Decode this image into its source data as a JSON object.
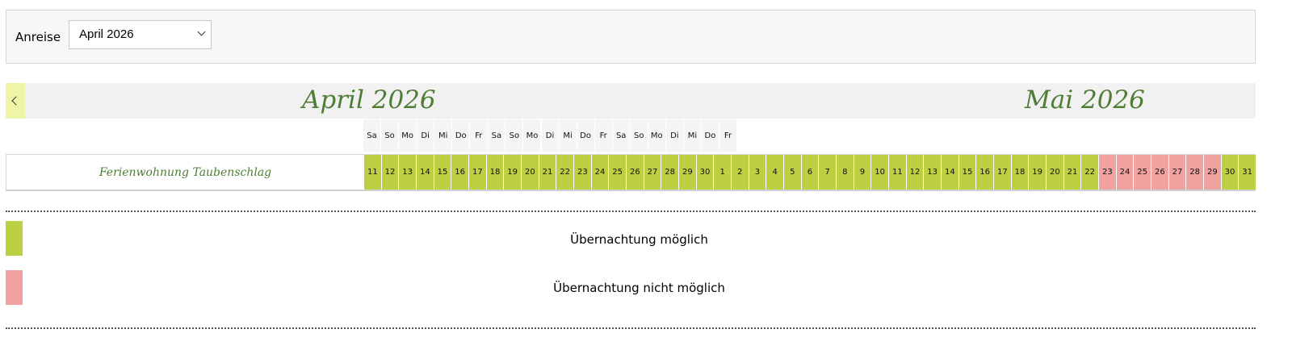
{
  "filter": {
    "label": "Anreise",
    "selected_month": "April 2026"
  },
  "calendar": {
    "months": [
      {
        "title": "April 2026"
      },
      {
        "title": "Mai 2026"
      }
    ],
    "weekdays": [
      "Sa",
      "So",
      "Mo",
      "Di",
      "Mi",
      "Do",
      "Fr",
      "Sa",
      "So",
      "Mo",
      "Di",
      "Mi",
      "Do",
      "Fr",
      "Sa",
      "So",
      "Mo",
      "Di",
      "Mi",
      "Do",
      "Fr"
    ],
    "unit": {
      "name": "Ferienwohnung Taubenschlag",
      "days": [
        {
          "d": "11",
          "s": "available"
        },
        {
          "d": "12",
          "s": "available"
        },
        {
          "d": "13",
          "s": "available"
        },
        {
          "d": "14",
          "s": "available"
        },
        {
          "d": "15",
          "s": "available"
        },
        {
          "d": "16",
          "s": "available"
        },
        {
          "d": "17",
          "s": "available"
        },
        {
          "d": "18",
          "s": "available"
        },
        {
          "d": "19",
          "s": "available"
        },
        {
          "d": "20",
          "s": "available"
        },
        {
          "d": "21",
          "s": "available"
        },
        {
          "d": "22",
          "s": "available"
        },
        {
          "d": "23",
          "s": "available"
        },
        {
          "d": "24",
          "s": "available"
        },
        {
          "d": "25",
          "s": "available"
        },
        {
          "d": "26",
          "s": "available"
        },
        {
          "d": "27",
          "s": "available"
        },
        {
          "d": "28",
          "s": "available"
        },
        {
          "d": "29",
          "s": "available"
        },
        {
          "d": "30",
          "s": "available"
        },
        {
          "d": "1",
          "s": "available"
        },
        {
          "d": "2",
          "s": "available"
        },
        {
          "d": "3",
          "s": "available"
        },
        {
          "d": "4",
          "s": "available"
        },
        {
          "d": "5",
          "s": "available"
        },
        {
          "d": "6",
          "s": "available"
        },
        {
          "d": "7",
          "s": "available"
        },
        {
          "d": "8",
          "s": "available"
        },
        {
          "d": "9",
          "s": "available"
        },
        {
          "d": "10",
          "s": "available"
        },
        {
          "d": "11",
          "s": "available"
        },
        {
          "d": "12",
          "s": "available"
        },
        {
          "d": "13",
          "s": "available"
        },
        {
          "d": "14",
          "s": "available"
        },
        {
          "d": "15",
          "s": "available"
        },
        {
          "d": "16",
          "s": "available"
        },
        {
          "d": "17",
          "s": "available"
        },
        {
          "d": "18",
          "s": "available"
        },
        {
          "d": "19",
          "s": "available"
        },
        {
          "d": "20",
          "s": "available"
        },
        {
          "d": "21",
          "s": "available"
        },
        {
          "d": "22",
          "s": "available"
        },
        {
          "d": "23",
          "s": "unavailable"
        },
        {
          "d": "24",
          "s": "unavailable"
        },
        {
          "d": "25",
          "s": "unavailable"
        },
        {
          "d": "26",
          "s": "unavailable"
        },
        {
          "d": "27",
          "s": "unavailable"
        },
        {
          "d": "28",
          "s": "unavailable"
        },
        {
          "d": "29",
          "s": "unavailable"
        },
        {
          "d": "30",
          "s": "available"
        },
        {
          "d": "31",
          "s": "available"
        }
      ]
    }
  },
  "legend": [
    {
      "label": "Übernachtung möglich",
      "color": "#bdd042"
    },
    {
      "label": "Übernachtung nicht möglich",
      "color": "#f0a2a0"
    }
  ],
  "colors": {
    "available": "#bdd042",
    "unavailable": "#f0a2a0",
    "accent": "#4f7d35"
  },
  "icons": {
    "prev": "chevron-left-icon",
    "select": "chevron-down-icon"
  }
}
